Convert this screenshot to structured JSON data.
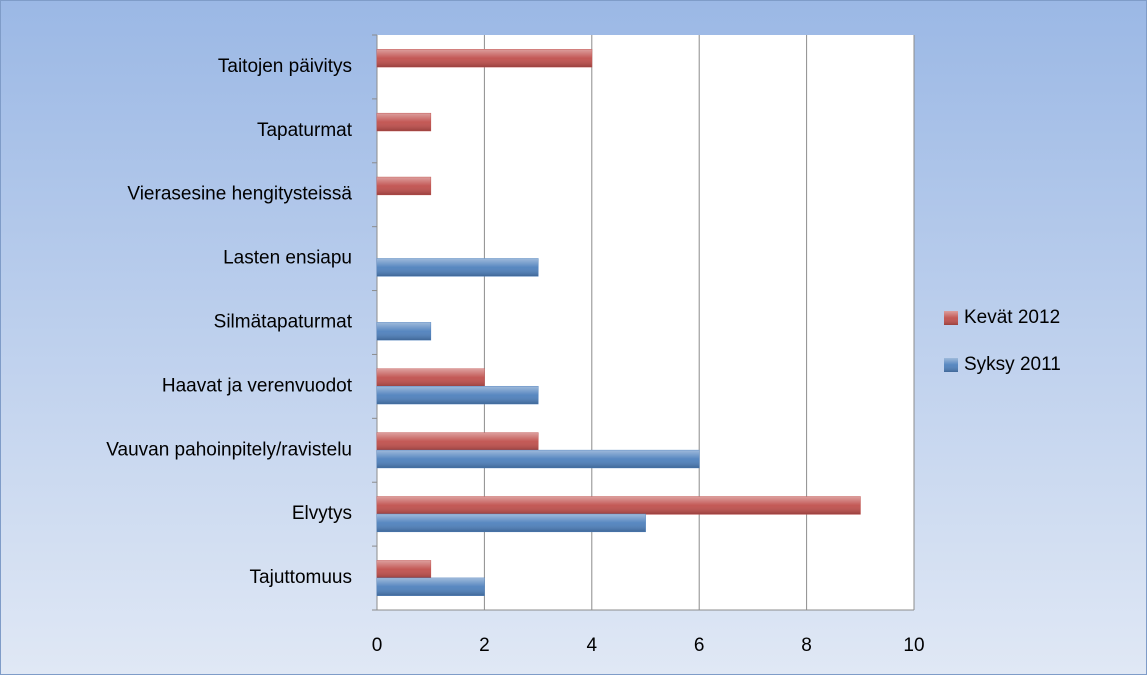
{
  "chart_data": {
    "type": "bar",
    "orientation": "horizontal",
    "categories": [
      "Tajuttomuus",
      "Elvytys",
      "Vauvan pahoinpitely/ravistelu",
      "Haavat ja verenvuodot",
      "Silmätapaturmat",
      "Lasten ensiapu",
      "Vierasesine hengitysteissä",
      "Tapaturmat",
      "Taitojen päivitys"
    ],
    "series": [
      {
        "name": "Kevät 2012",
        "color": "#c0504d",
        "values": [
          1,
          9,
          3,
          2,
          null,
          null,
          1,
          1,
          4
        ]
      },
      {
        "name": "Syksy 2011",
        "color": "#4f81bd",
        "values": [
          2,
          5,
          6,
          3,
          1,
          3,
          null,
          null,
          null
        ]
      }
    ],
    "xlim": [
      0,
      10
    ],
    "xticks": [
      0,
      2,
      4,
      6,
      8,
      10
    ],
    "grid": true,
    "legend": "right"
  }
}
